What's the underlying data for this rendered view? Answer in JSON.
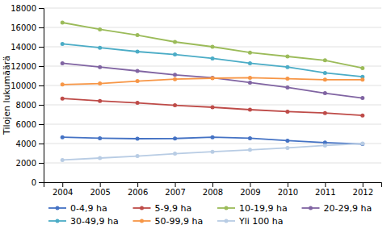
{
  "chart_data": {
    "type": "line",
    "x": [
      2004,
      2005,
      2006,
      2007,
      2008,
      2009,
      2010,
      2011,
      2012
    ],
    "series": [
      {
        "name": "0-4,9 ha",
        "color": "#4472C4",
        "values": [
          4650,
          4550,
          4500,
          4520,
          4650,
          4550,
          4300,
          4100,
          3950
        ]
      },
      {
        "name": "5-9,9 ha",
        "color": "#BE4B48",
        "values": [
          8650,
          8400,
          8200,
          7950,
          7750,
          7500,
          7300,
          7150,
          6900
        ]
      },
      {
        "name": "10-19,9 ha",
        "color": "#9BBB59",
        "values": [
          16500,
          15800,
          15200,
          14500,
          14000,
          13400,
          13000,
          12600,
          11800
        ]
      },
      {
        "name": "20-29,9 ha",
        "color": "#8064A2",
        "values": [
          12300,
          11900,
          11500,
          11100,
          10800,
          10300,
          9800,
          9200,
          8700
        ]
      },
      {
        "name": "30-49,9 ha",
        "color": "#4BACC6",
        "values": [
          14300,
          13900,
          13500,
          13200,
          12800,
          12300,
          11900,
          11300,
          10900
        ]
      },
      {
        "name": "50-99,9 ha",
        "color": "#F79646",
        "values": [
          10100,
          10200,
          10450,
          10650,
          10750,
          10800,
          10700,
          10600,
          10600
        ]
      },
      {
        "name": "Yli 100 ha",
        "color": "#B8CCE4",
        "values": [
          2300,
          2500,
          2700,
          2950,
          3150,
          3350,
          3550,
          3800,
          4000
        ]
      }
    ],
    "ylabel": "Tilojen lukumäärä",
    "xlim": [
      2003.5,
      2012.5
    ],
    "xticks": [
      2004,
      2005,
      2006,
      2007,
      2008,
      2009,
      2010,
      2011,
      2012
    ],
    "ylim": [
      0,
      18000
    ],
    "yticks": [
      0,
      2000,
      4000,
      6000,
      8000,
      10000,
      12000,
      14000,
      16000,
      18000
    ],
    "grid": true,
    "marker": "circle",
    "legend": "bottom"
  }
}
